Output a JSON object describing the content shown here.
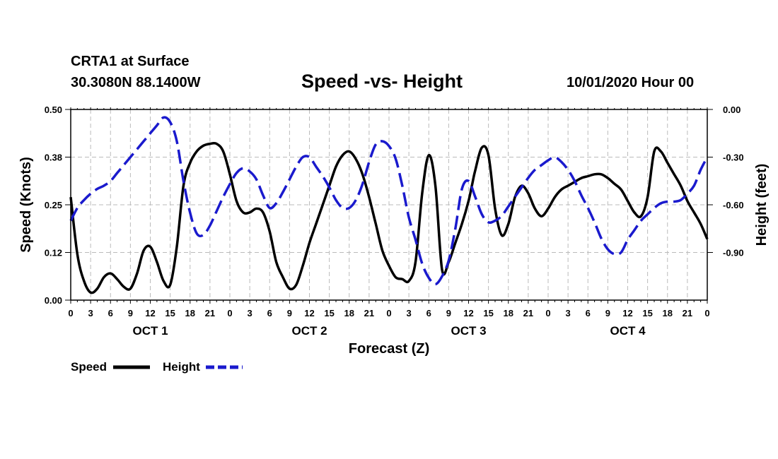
{
  "header": {
    "station": "CRTA1 at Surface",
    "coords": "30.3080N 88.1400W",
    "title": "Speed -vs- Height",
    "date": "10/01/2020 Hour 00"
  },
  "colors": {
    "speed": "#000000",
    "height": "#1a1acd",
    "grid": "#bbbbbb"
  },
  "chart_data": {
    "type": "line",
    "title": "Speed -vs- Height",
    "xlabel": "Forecast (Z)",
    "ylabel": "Speed (Knots)",
    "y2label": "Height (feet)",
    "x_range_hours": [
      0,
      96
    ],
    "x_tick_labels": [
      "0",
      "3",
      "6",
      "9",
      "12",
      "15",
      "18",
      "21",
      "0",
      "3",
      "6",
      "9",
      "12",
      "15",
      "18",
      "21",
      "0",
      "3",
      "6",
      "9",
      "12",
      "15",
      "18",
      "21",
      "0",
      "3",
      "6",
      "9",
      "12",
      "15",
      "18",
      "21",
      "0"
    ],
    "day_labels": [
      {
        "label": "OCT 1",
        "hour": 12
      },
      {
        "label": "OCT 2",
        "hour": 36
      },
      {
        "label": "OCT 3",
        "hour": 60
      },
      {
        "label": "OCT 4",
        "hour": 84
      }
    ],
    "ylim": [
      0,
      0.5
    ],
    "y_tick_labels": [
      "0.00",
      "0.12",
      "0.25",
      "0.38",
      "0.50"
    ],
    "y2lim": [
      -1.2,
      0.0
    ],
    "y2_tick_labels": [
      "0.00",
      "-0.30",
      "-0.60",
      "-0.90"
    ],
    "series": [
      {
        "name": "Speed",
        "axis": "left",
        "style": "solid",
        "x": [
          0,
          1,
          2,
          3,
          4,
          5,
          6,
          7,
          8,
          9,
          10,
          11,
          12,
          13,
          14,
          15,
          16,
          17,
          18,
          19,
          20,
          21,
          22,
          23,
          24,
          25,
          26,
          27,
          28,
          29,
          30,
          31,
          32,
          33,
          34,
          35,
          36,
          37,
          38,
          39,
          40,
          41,
          42,
          43,
          44,
          45,
          46,
          47,
          48,
          49,
          50,
          51,
          52,
          53,
          54,
          55,
          56,
          57,
          58,
          59,
          60,
          60.5,
          61,
          62,
          63,
          64,
          65,
          66,
          67,
          68,
          69,
          70,
          71,
          72,
          73,
          74,
          75,
          76,
          77,
          78,
          79,
          80,
          81,
          82,
          83,
          84,
          85,
          86,
          87,
          88,
          89,
          90,
          91,
          92,
          93,
          94,
          95,
          96
        ],
        "values": [
          0.27,
          0.12,
          0.05,
          0.02,
          0.03,
          0.06,
          0.07,
          0.055,
          0.035,
          0.03,
          0.07,
          0.13,
          0.14,
          0.1,
          0.05,
          0.04,
          0.14,
          0.3,
          0.36,
          0.39,
          0.405,
          0.41,
          0.41,
          0.39,
          0.33,
          0.26,
          0.23,
          0.23,
          0.24,
          0.23,
          0.18,
          0.1,
          0.06,
          0.03,
          0.04,
          0.09,
          0.15,
          0.2,
          0.25,
          0.3,
          0.35,
          0.38,
          0.39,
          0.37,
          0.33,
          0.27,
          0.2,
          0.13,
          0.09,
          0.06,
          0.055,
          0.05,
          0.1,
          0.28,
          0.38,
          0.3,
          0.08,
          0.1,
          0.15,
          0.2,
          0.26,
          0.3,
          0.34,
          0.4,
          0.38,
          0.24,
          0.17,
          0.2,
          0.27,
          0.3,
          0.28,
          0.24,
          0.22,
          0.24,
          0.27,
          0.29,
          0.3,
          0.31,
          0.32,
          0.325,
          0.33,
          0.33,
          0.32,
          0.305,
          0.29,
          0.26,
          0.23,
          0.22,
          0.27,
          0.39,
          0.39,
          0.36,
          0.33,
          0.3,
          0.26,
          0.23,
          0.2,
          0.16
        ]
      },
      {
        "name": "Height",
        "axis": "right",
        "style": "dashed",
        "x": [
          0,
          1,
          2,
          3,
          4,
          5,
          6,
          7,
          8,
          9,
          10,
          11,
          12,
          13,
          14,
          15,
          16,
          17,
          18,
          19,
          20,
          21,
          22,
          23,
          24,
          25,
          26,
          27,
          28,
          29,
          30,
          31,
          32,
          33,
          34,
          35,
          36,
          37,
          38,
          39,
          40,
          41,
          42,
          43,
          44,
          45,
          46,
          47,
          48,
          49,
          50,
          51,
          52,
          53,
          54,
          55,
          56,
          57,
          58,
          59,
          60,
          61,
          62,
          63,
          64,
          65,
          66,
          67,
          68,
          69,
          70,
          71,
          72,
          73,
          74,
          75,
          76,
          77,
          78,
          79,
          80,
          81,
          82,
          83,
          84,
          85,
          86,
          87,
          88,
          89,
          90,
          91,
          92,
          93,
          94,
          95,
          96
        ],
        "values": [
          -0.7,
          -0.62,
          -0.57,
          -0.53,
          -0.5,
          -0.48,
          -0.45,
          -0.4,
          -0.35,
          -0.3,
          -0.25,
          -0.2,
          -0.15,
          -0.1,
          -0.05,
          -0.08,
          -0.2,
          -0.45,
          -0.65,
          -0.78,
          -0.79,
          -0.73,
          -0.64,
          -0.55,
          -0.47,
          -0.4,
          -0.37,
          -0.39,
          -0.44,
          -0.54,
          -0.62,
          -0.59,
          -0.52,
          -0.44,
          -0.36,
          -0.3,
          -0.3,
          -0.36,
          -0.42,
          -0.49,
          -0.57,
          -0.62,
          -0.62,
          -0.57,
          -0.47,
          -0.33,
          -0.22,
          -0.2,
          -0.23,
          -0.31,
          -0.48,
          -0.68,
          -0.82,
          -0.97,
          -1.06,
          -1.1,
          -1.05,
          -0.95,
          -0.75,
          -0.5,
          -0.45,
          -0.55,
          -0.66,
          -0.71,
          -0.7,
          -0.67,
          -0.61,
          -0.55,
          -0.49,
          -0.43,
          -0.38,
          -0.35,
          -0.32,
          -0.3,
          -0.33,
          -0.38,
          -0.45,
          -0.54,
          -0.62,
          -0.71,
          -0.81,
          -0.88,
          -0.91,
          -0.9,
          -0.82,
          -0.76,
          -0.7,
          -0.66,
          -0.62,
          -0.59,
          -0.58,
          -0.58,
          -0.57,
          -0.53,
          -0.48,
          -0.38,
          -0.3
        ]
      }
    ],
    "legend": [
      {
        "label": "Speed",
        "style": "solid"
      },
      {
        "label": "Height",
        "style": "dashed"
      }
    ]
  }
}
